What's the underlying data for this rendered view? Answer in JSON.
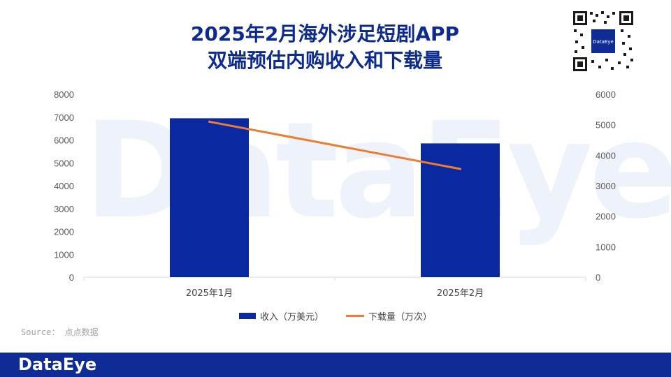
{
  "header": {
    "title_line1": "2025年2月海外涉足短剧APP",
    "title_line2": "双端预估内购收入和下载量",
    "qr_brand": "DataEye"
  },
  "watermark": "DataEye",
  "colors": {
    "bar": "#0a28a0",
    "line": "#ed7d31",
    "title": "#0d2a8f",
    "footer": "#0f2c96"
  },
  "chart_data": {
    "type": "bar",
    "categories": [
      "2025年1月",
      "2025年2月"
    ],
    "series": [
      {
        "name": "收入（万美元）",
        "type": "bar",
        "axis": "left",
        "values": [
          6950,
          5850
        ]
      },
      {
        "name": "下载量（万次）",
        "type": "line",
        "axis": "right",
        "values": [
          5100,
          3550
        ]
      }
    ],
    "y_left": {
      "ticks": [
        0,
        1000,
        2000,
        3000,
        4000,
        5000,
        6000,
        7000,
        8000
      ],
      "range": [
        0,
        8000
      ]
    },
    "y_right": {
      "ticks": [
        0,
        1000,
        2000,
        3000,
        4000,
        5000,
        6000
      ],
      "range": [
        0,
        6000
      ]
    },
    "grid": false,
    "legend_position": "bottom"
  },
  "source": "Source： 点点数据",
  "footer": {
    "logo": "DataEye"
  }
}
